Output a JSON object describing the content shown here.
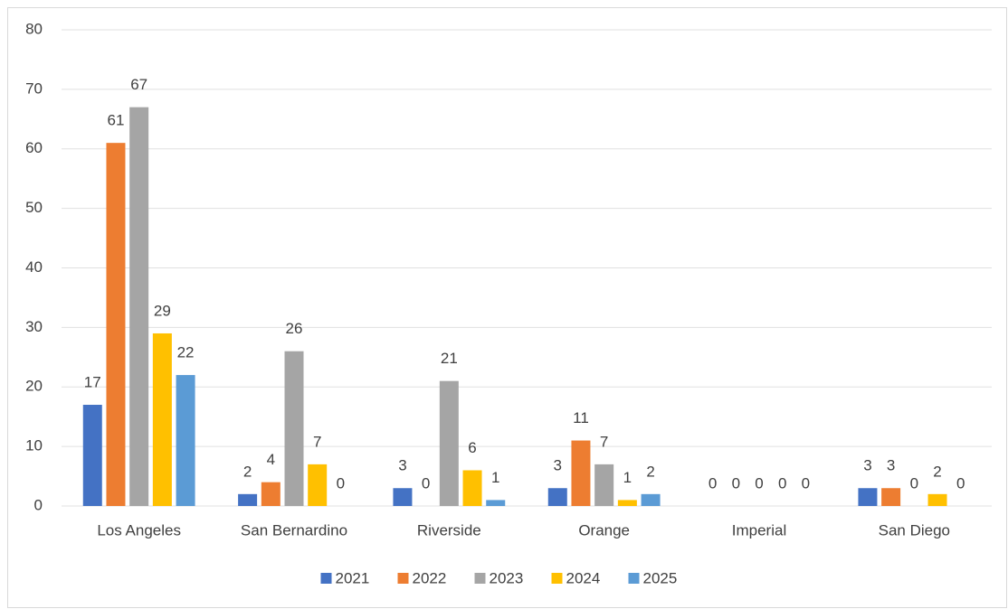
{
  "chart_data": {
    "type": "bar",
    "categories": [
      "Los Angeles",
      "San Bernardino",
      "Riverside",
      "Orange",
      "Imperial",
      "San Diego"
    ],
    "series": [
      {
        "name": "2021",
        "color": "#4472c4",
        "values": [
          17,
          2,
          3,
          3,
          0,
          3
        ]
      },
      {
        "name": "2022",
        "color": "#ed7d31",
        "values": [
          61,
          4,
          0,
          11,
          0,
          3
        ]
      },
      {
        "name": "2023",
        "color": "#a5a5a5",
        "values": [
          67,
          26,
          21,
          7,
          0,
          0
        ]
      },
      {
        "name": "2024",
        "color": "#ffc000",
        "values": [
          29,
          7,
          6,
          1,
          0,
          2
        ]
      },
      {
        "name": "2025",
        "color": "#5b9bd5",
        "values": [
          22,
          0,
          1,
          2,
          0,
          0
        ]
      }
    ],
    "ylim": [
      0,
      80
    ],
    "yticks": [
      0,
      10,
      20,
      30,
      40,
      50,
      60,
      70,
      80
    ],
    "grid": true,
    "legend": "bottom"
  }
}
